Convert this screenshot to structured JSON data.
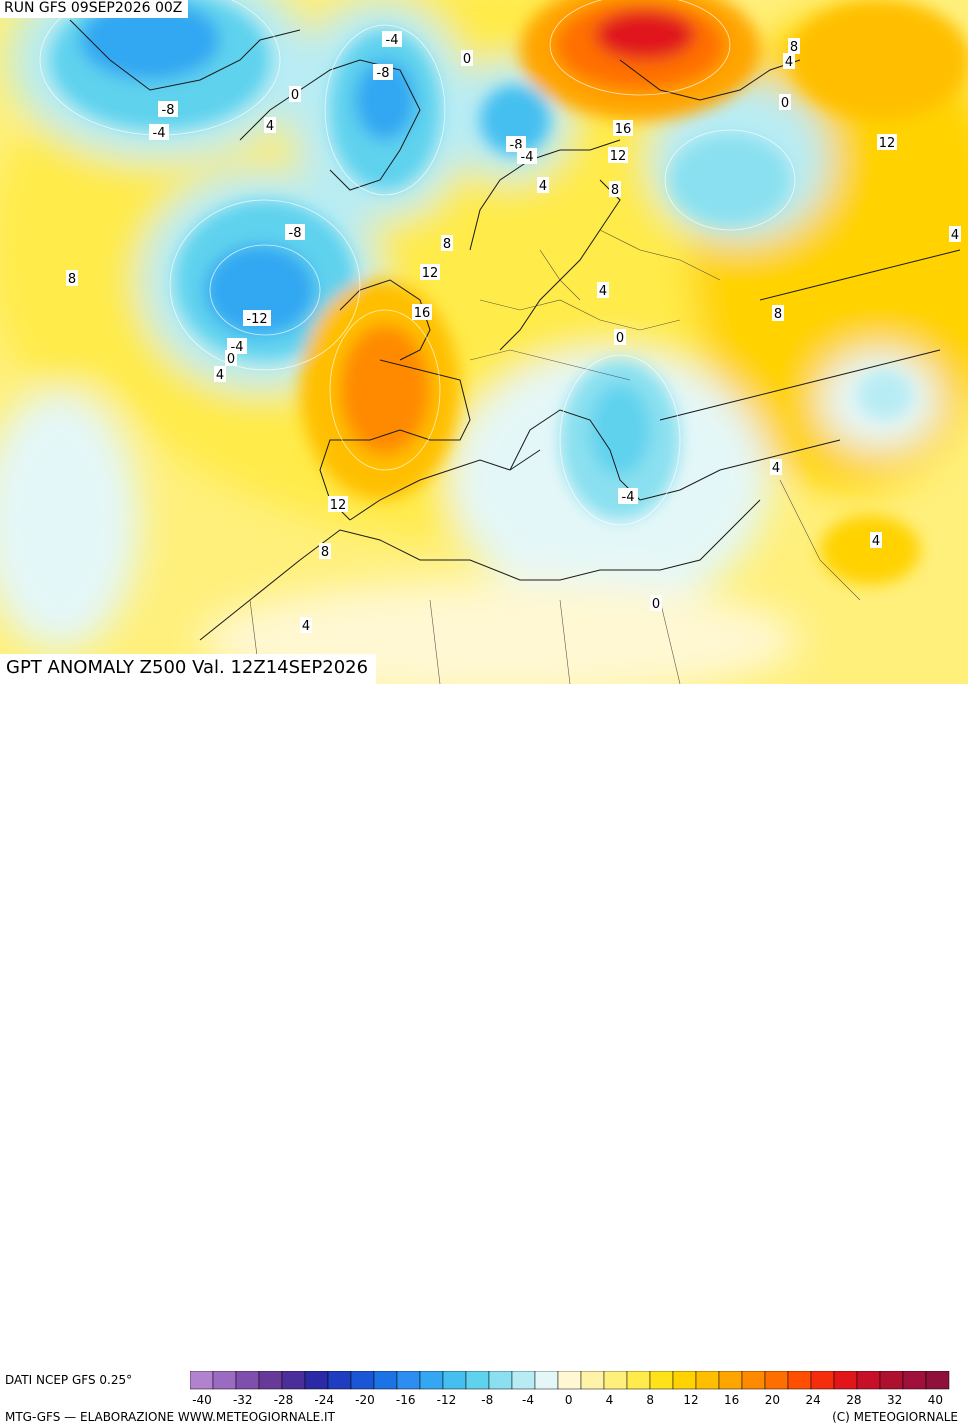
{
  "header": {
    "run_title": "RUN GFS 09SEP2026 00Z",
    "anomaly_title": "GPT ANOMALY Z500 Val. 12Z14SEP2026"
  },
  "legend": {
    "data_source": "DATI NCEP GFS 0.25°",
    "ticks": [
      "-40",
      "-32",
      "-28",
      "-24",
      "-20",
      "-16",
      "-12",
      "-8",
      "-4",
      "0",
      "4",
      "8",
      "12",
      "16",
      "20",
      "24",
      "28",
      "32",
      "40"
    ],
    "colors": [
      "#b183cf",
      "#9a6bc0",
      "#7f4fae",
      "#673a9a",
      "#4a2f9b",
      "#2b2aa6",
      "#1f3dc0",
      "#1a56d6",
      "#1c73e6",
      "#2b8ef0",
      "#33a7f2",
      "#44bff0",
      "#5fd2ee",
      "#8ae0f0",
      "#b8ecf4",
      "#e4f7f8",
      "#fff8d2",
      "#fff3a8",
      "#fff07c",
      "#ffeb4a",
      "#ffe21a",
      "#ffd200",
      "#ffbf00",
      "#ffa500",
      "#ff8a00",
      "#ff6f00",
      "#ff4f00",
      "#f52d0c",
      "#e0161a",
      "#c80f2a",
      "#b0102f",
      "#a0103a",
      "#90103c"
    ]
  },
  "footer": {
    "left": "MTG-GFS — ELABORAZIONE WWW.METEOGIORNALE.IT",
    "right": "(C) METEOGIORNALE"
  },
  "map_labels": [
    {
      "text": "-4"
    },
    {
      "text": "0"
    },
    {
      "text": "8"
    },
    {
      "text": "4"
    },
    {
      "text": "0"
    },
    {
      "text": "-8"
    },
    {
      "text": "-8"
    },
    {
      "text": "-4"
    },
    {
      "text": "4"
    },
    {
      "text": "0"
    },
    {
      "text": "12"
    },
    {
      "text": "16"
    },
    {
      "text": "12"
    },
    {
      "text": "-8"
    },
    {
      "text": "-4"
    },
    {
      "text": "4"
    },
    {
      "text": "8"
    },
    {
      "text": "-8"
    },
    {
      "text": "8"
    },
    {
      "text": "12"
    },
    {
      "text": "8"
    },
    {
      "text": "4"
    },
    {
      "text": "4"
    },
    {
      "text": "-12"
    },
    {
      "text": "-4"
    },
    {
      "text": "0"
    },
    {
      "text": "16"
    },
    {
      "text": "4"
    },
    {
      "text": "0"
    },
    {
      "text": "8"
    },
    {
      "text": "4"
    },
    {
      "text": "-4"
    },
    {
      "text": "12"
    },
    {
      "text": "8"
    },
    {
      "text": "4"
    },
    {
      "text": "4"
    },
    {
      "text": "0"
    }
  ]
}
